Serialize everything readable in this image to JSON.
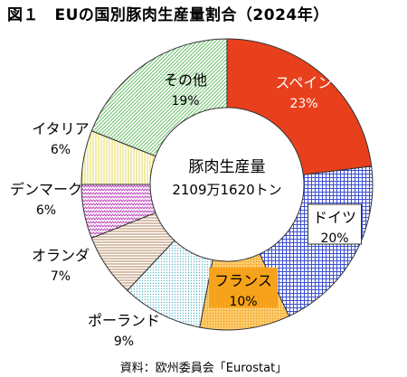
{
  "chart_data": {
    "type": "donut",
    "title": "図１　EUの国別豚肉生産量割合（2024年）",
    "center_label": {
      "line1": "豚肉生産量",
      "line2": "2109万1620トン"
    },
    "slices": [
      {
        "label": "スペイン",
        "value": 23,
        "value_label": "23%",
        "color": "#e8401c",
        "pattern": "solid"
      },
      {
        "label": "ドイツ",
        "value": 20,
        "value_label": "20%",
        "color": "#3b4fd0",
        "pattern": "grid"
      },
      {
        "label": "フランス",
        "value": 10,
        "value_label": "10%",
        "color": "#f7a21b",
        "pattern": "dots"
      },
      {
        "label": "ポーランド",
        "value": 9,
        "value_label": "9%",
        "color": "#56b6c9",
        "pattern": "dots-fine"
      },
      {
        "label": "オランダ",
        "value": 7,
        "value_label": "7%",
        "color": "#b08058",
        "pattern": "hlines"
      },
      {
        "label": "デンマーク",
        "value": 6,
        "value_label": "6%",
        "color": "#c04cc0",
        "pattern": "zigzag"
      },
      {
        "label": "イタリア",
        "value": 6,
        "value_label": "6%",
        "color": "#f5ee9a",
        "pattern": "vlines"
      },
      {
        "label": "その他",
        "value": 19,
        "value_label": "19%",
        "color": "#6cc06c",
        "pattern": "diagonal"
      }
    ],
    "source": "資料：欧州委員会「Eurostat」"
  }
}
